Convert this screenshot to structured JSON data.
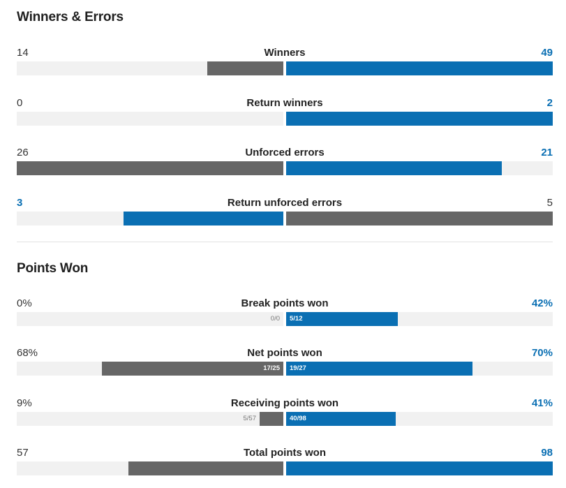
{
  "winners_errors": {
    "title": "Winners & Errors",
    "stats": [
      {
        "label": "Winners",
        "left": "14",
        "right": "49",
        "left_ratio": 0.286,
        "right_ratio": 1.0,
        "left_color": "grey",
        "right_color": "blue",
        "winner": "right"
      },
      {
        "label": "Return winners",
        "left": "0",
        "right": "2",
        "left_ratio": 0.0,
        "right_ratio": 1.0,
        "left_color": "grey",
        "right_color": "blue",
        "winner": "right"
      },
      {
        "label": "Unforced errors",
        "left": "26",
        "right": "21",
        "left_ratio": 1.0,
        "right_ratio": 0.808,
        "left_color": "grey",
        "right_color": "blue",
        "winner": "right"
      },
      {
        "label": "Return unforced errors",
        "left": "3",
        "right": "5",
        "left_ratio": 0.6,
        "right_ratio": 1.0,
        "left_color": "blue",
        "right_color": "grey",
        "winner": "left"
      }
    ]
  },
  "points_won": {
    "title": "Points Won",
    "stats": [
      {
        "label": "Break points won",
        "left": "0%",
        "right": "42%",
        "left_ratio": 0.0,
        "right_ratio": 0.42,
        "left_frac": "0/0",
        "right_frac": "5/12",
        "left_color": "grey",
        "right_color": "blue",
        "winner": "right"
      },
      {
        "label": "Net points won",
        "left": "68%",
        "right": "70%",
        "left_ratio": 0.68,
        "right_ratio": 0.7,
        "left_frac": "17/25",
        "right_frac": "19/27",
        "left_color": "grey",
        "right_color": "blue",
        "winner": "right"
      },
      {
        "label": "Receiving points won",
        "left": "9%",
        "right": "41%",
        "left_ratio": 0.09,
        "right_ratio": 0.41,
        "left_frac": "5/57",
        "right_frac": "40/98",
        "left_color": "grey",
        "right_color": "blue",
        "winner": "right"
      },
      {
        "label": "Total points won",
        "left": "57",
        "right": "98",
        "left_ratio": 0.582,
        "right_ratio": 1.0,
        "left_color": "grey",
        "right_color": "blue",
        "winner": "right"
      }
    ]
  },
  "colors": {
    "blue": "#0a6fb3",
    "grey": "#666666",
    "track": "#f1f1f1"
  }
}
